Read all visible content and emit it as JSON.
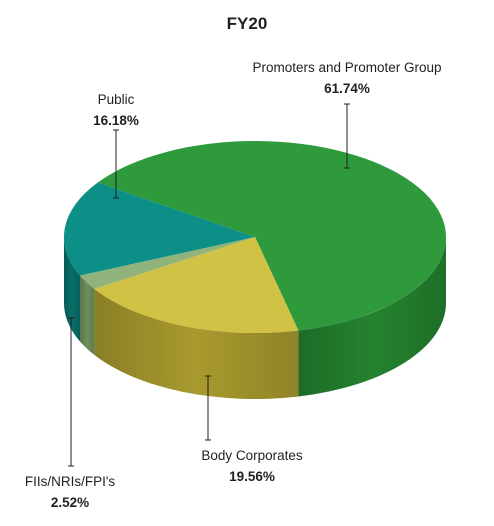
{
  "chart_data": {
    "type": "pie",
    "title": "FY20",
    "categories": [
      "Promoters and Promoter Group",
      "Body Corporates",
      "FIIs/NRIs/FPI's",
      "Public"
    ],
    "values": [
      61.74,
      19.56,
      2.52,
      16.18
    ],
    "value_labels": [
      "61.74%",
      "19.56%",
      "2.52%",
      "16.18%"
    ],
    "colors": [
      "#2e9a3c",
      "#cfc244",
      "#8fb37a",
      "#0b8f86"
    ],
    "side_colors": [
      "#24822f",
      "#a89a2e",
      "#6f8f5c",
      "#086e68"
    ],
    "style": "3d",
    "legend": "none"
  }
}
